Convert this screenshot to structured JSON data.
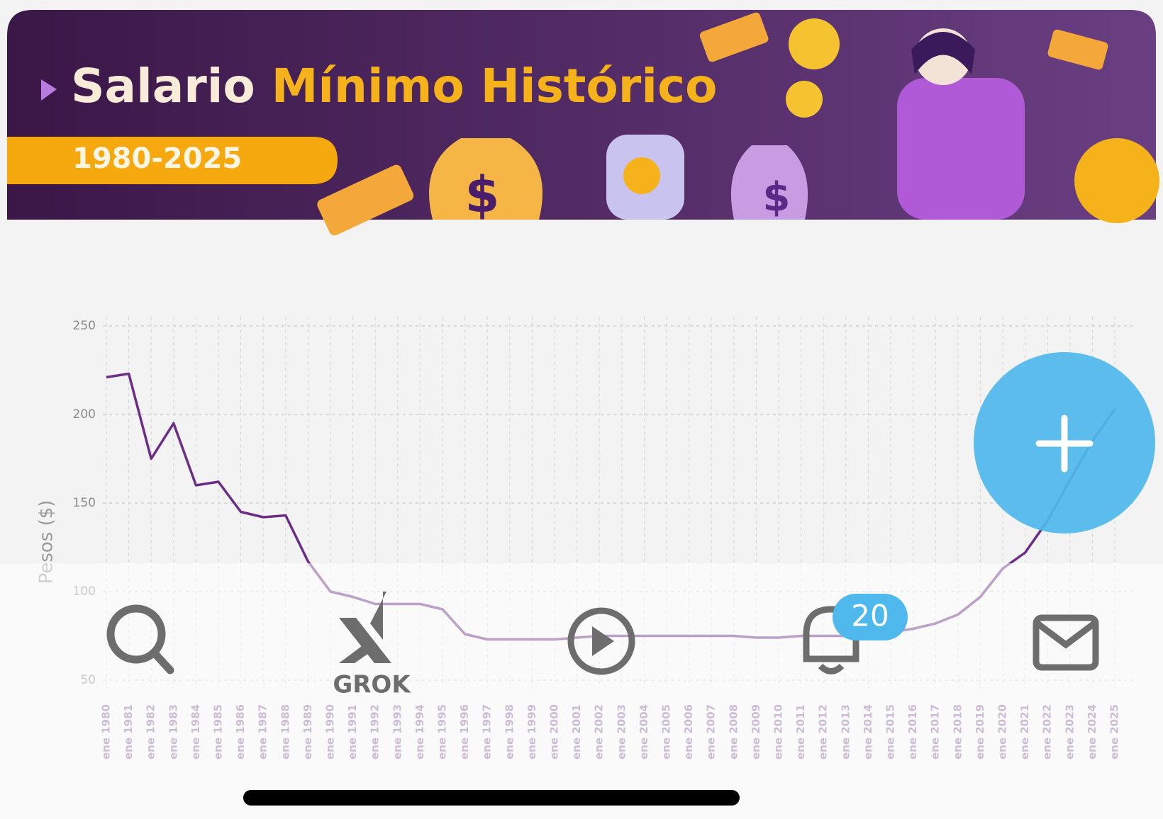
{
  "header": {
    "title_start": "Salario",
    "title_end": "Mínimo Histórico",
    "subtitle": "1980-2025"
  },
  "chart_data": {
    "type": "line",
    "y_label": "Pesos ($)",
    "categories": [
      "ene 1980",
      "ene 1981",
      "ene 1982",
      "ene 1983",
      "ene 1984",
      "ene 1985",
      "ene 1986",
      "ene 1987",
      "ene 1988",
      "ene 1989",
      "ene 1990",
      "ene 1991",
      "ene 1992",
      "ene 1993",
      "ene 1994",
      "ene 1995",
      "ene 1996",
      "ene 1997",
      "ene 1998",
      "ene 1999",
      "ene 2000",
      "ene 2001",
      "ene 2002",
      "ene 2003",
      "ene 2004",
      "ene 2005",
      "ene 2006",
      "ene 2007",
      "ene 2008",
      "ene 2009",
      "ene 2010",
      "ene 2011",
      "ene 2012",
      "ene 2013",
      "ene 2014",
      "ene 2015",
      "ene 2016",
      "ene 2017",
      "ene 2018",
      "ene 2019",
      "ene 2020",
      "ene 2021",
      "ene 2022",
      "ene 2023",
      "ene 2024",
      "ene 2025"
    ],
    "values": [
      221,
      223,
      175,
      195,
      160,
      162,
      145,
      142,
      143,
      117,
      100,
      97,
      93,
      93,
      93,
      90,
      76,
      73,
      73,
      73,
      73,
      74,
      75,
      75,
      75,
      75,
      75,
      75,
      75,
      74,
      74,
      75,
      75,
      75,
      76,
      77,
      79,
      82,
      87,
      97,
      113,
      122,
      140,
      163,
      185,
      203
    ],
    "color": "#6b2d86",
    "ylim": [
      45,
      255
    ],
    "yticks": [
      50,
      100,
      150,
      200,
      250
    ],
    "grid": true
  },
  "nav": {
    "grok_label": "GROK",
    "badge": 20
  }
}
